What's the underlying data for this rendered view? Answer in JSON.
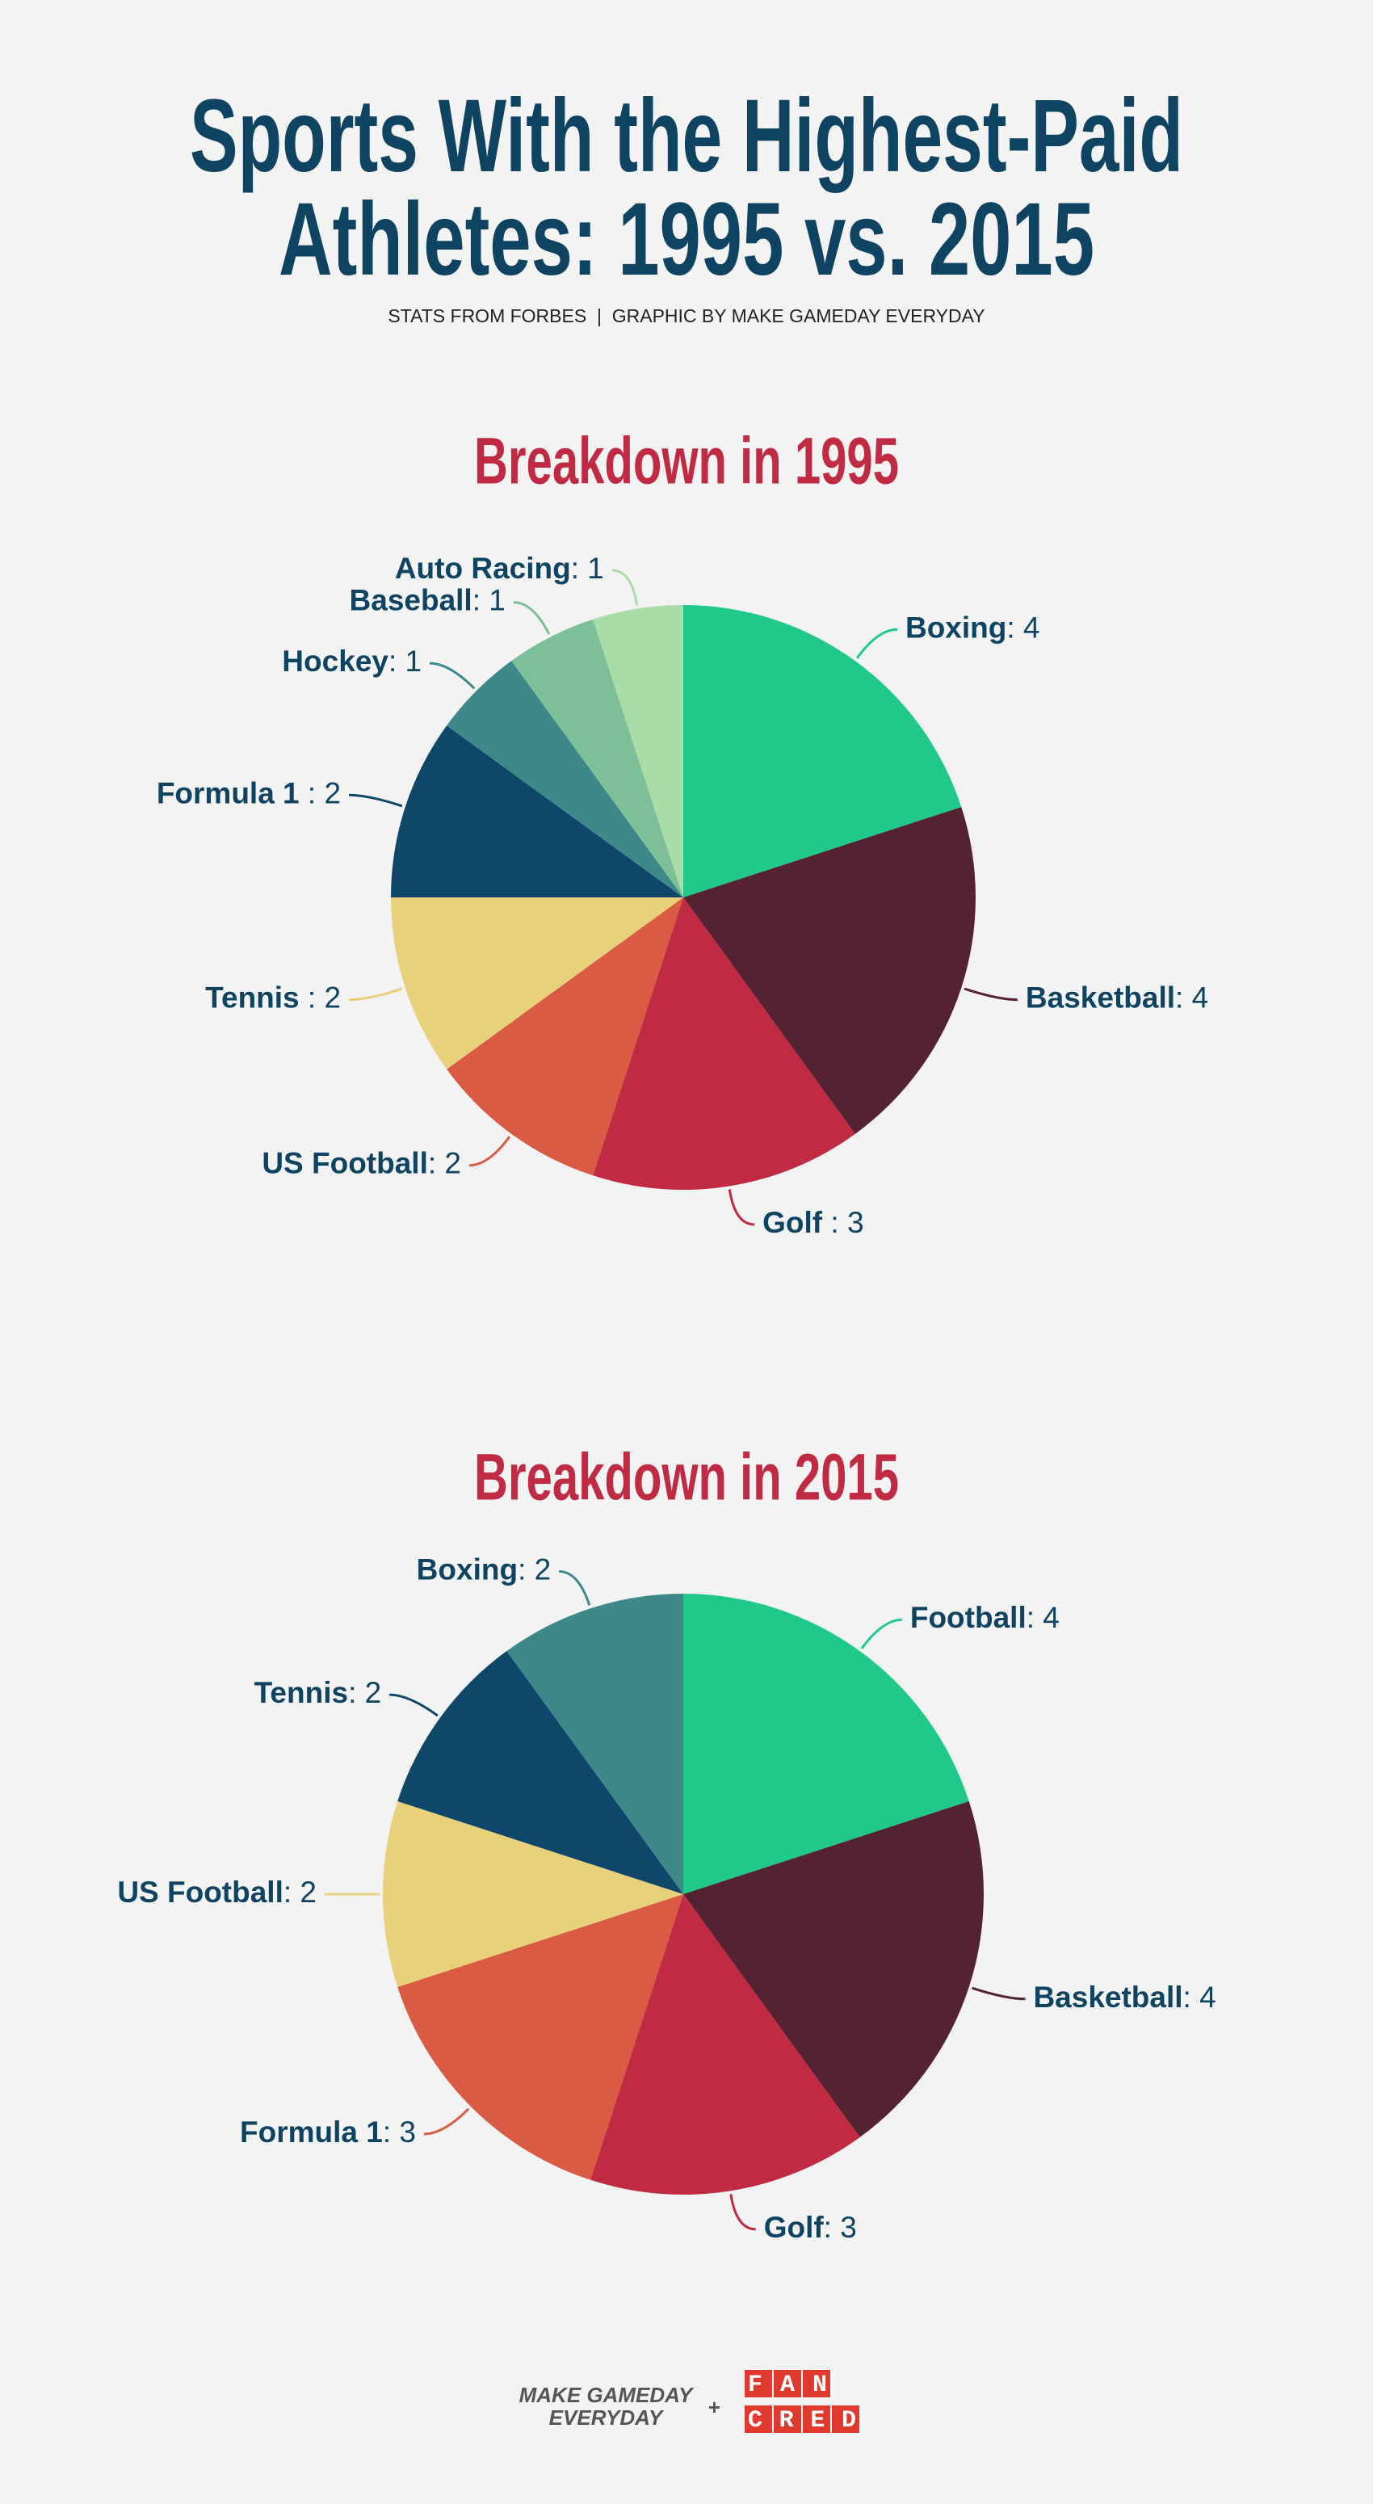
{
  "header": {
    "title": [
      "Sports With the Highest-Paid",
      "Athletes: 1995 vs. 2015"
    ],
    "subtitle": "STATS FROM FORBES  |  GRAPHIC BY MAKE GAMEDAY EVERYDAY"
  },
  "chart_data": [
    {
      "type": "pie",
      "title": "Breakdown in 1995",
      "categories": [
        "Boxing",
        "Basketball",
        "Golf",
        "US Football",
        "Tennis",
        "Formula 1",
        "Hockey",
        "Baseball",
        "Auto Racing"
      ],
      "values": [
        4,
        4,
        3,
        2,
        2,
        2,
        1,
        1,
        1
      ],
      "value_labels": [
        ": 4",
        ": 4",
        " : 3",
        ": 2",
        " : 2",
        " : 2",
        ": 1",
        ": 1",
        ": 1"
      ],
      "colors": [
        "#20c98a",
        "#552233",
        "#c02a42",
        "#da5b43",
        "#e9d07a",
        "#0e476a",
        "#3d8888",
        "#7dbf98",
        "#aadca8"
      ]
    },
    {
      "type": "pie",
      "title": "Breakdown in 2015",
      "categories": [
        "Football",
        "Basketball",
        "Golf",
        "Formula 1",
        "US Football",
        "Tennis",
        "Boxing"
      ],
      "values": [
        4,
        4,
        3,
        3,
        2,
        2,
        2
      ],
      "value_labels": [
        ": 4",
        ": 4",
        ": 3",
        ": 3",
        ": 2",
        ": 2",
        ": 2"
      ],
      "colors": [
        "#20c98a",
        "#552233",
        "#c02a42",
        "#da5b43",
        "#e9d07a",
        "#0e476a",
        "#3d8888"
      ]
    }
  ],
  "footer": {
    "brand": [
      "MAKE GAMEDAY",
      "EVERYDAY"
    ],
    "plus": "+",
    "partner": [
      "FAN",
      "CRED"
    ]
  }
}
